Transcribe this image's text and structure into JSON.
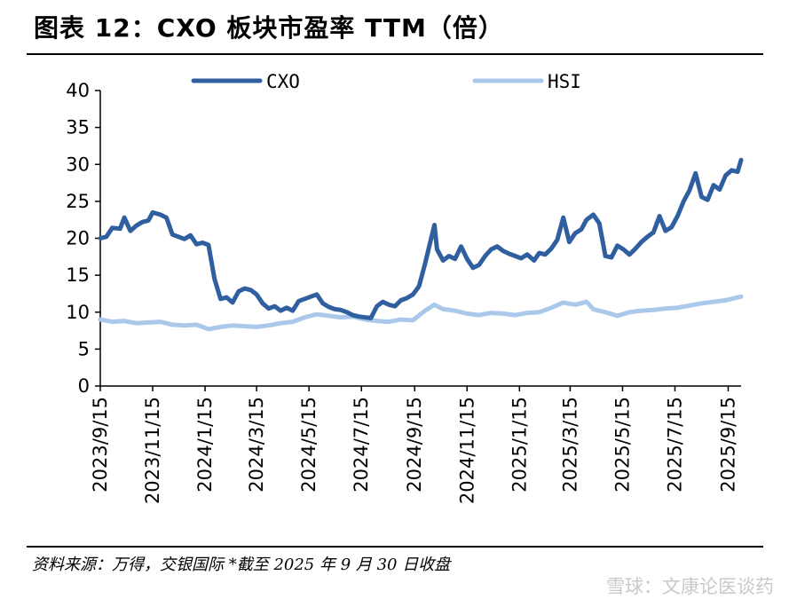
{
  "header": {
    "title": "图表 12：CXO 板块市盈率 TTM（倍）"
  },
  "footer": {
    "source": "资料来源：万得，交银国际 *截至 2025 年 9 月 30 日收盘",
    "watermark": "雪球：文康论医谈药"
  },
  "chart_data": {
    "type": "line",
    "title": "图表 12：CXO 板块市盈率 TTM（倍）",
    "xlabel": "",
    "ylabel": "",
    "ylim": [
      0,
      40
    ],
    "yticks": [
      "0",
      "5",
      "10",
      "15",
      "20",
      "25",
      "30",
      "35",
      "40"
    ],
    "xticks": [
      "2023/9/15",
      "2023/11/15",
      "2024/1/15",
      "2024/3/15",
      "2024/5/15",
      "2024/7/15",
      "2024/9/15",
      "2024/11/15",
      "2025/1/15",
      "2025/3/15",
      "2025/5/15",
      "2025/7/15",
      "2025/9/15"
    ],
    "x_start": "2023/9/15",
    "x_end": "2025/9/30",
    "legend": "top",
    "grid": false,
    "series": [
      {
        "name": "CXO",
        "color": "#2f5f9e",
        "points": [
          [
            "2023/9/15",
            20.0
          ],
          [
            "2023/9/22",
            20.2
          ],
          [
            "2023/9/29",
            21.4
          ],
          [
            "2023/10/8",
            21.3
          ],
          [
            "2023/10/13",
            22.8
          ],
          [
            "2023/10/20",
            21.0
          ],
          [
            "2023/10/27",
            21.7
          ],
          [
            "2023/11/3",
            22.2
          ],
          [
            "2023/11/10",
            22.4
          ],
          [
            "2023/11/15",
            23.5
          ],
          [
            "2023/11/24",
            23.2
          ],
          [
            "2023/12/1",
            22.8
          ],
          [
            "2023/12/8",
            20.5
          ],
          [
            "2023/12/15",
            20.2
          ],
          [
            "2023/12/22",
            19.9
          ],
          [
            "2023/12/29",
            20.4
          ],
          [
            "2024/1/5",
            19.2
          ],
          [
            "2024/1/12",
            19.4
          ],
          [
            "2024/1/19",
            19.1
          ],
          [
            "2024/1/26",
            14.5
          ],
          [
            "2024/2/2",
            11.8
          ],
          [
            "2024/2/9",
            12.0
          ],
          [
            "2024/2/16",
            11.3
          ],
          [
            "2024/2/23",
            12.8
          ],
          [
            "2024/3/1",
            13.2
          ],
          [
            "2024/3/8",
            13.0
          ],
          [
            "2024/3/15",
            12.4
          ],
          [
            "2024/3/22",
            11.2
          ],
          [
            "2024/3/29",
            10.5
          ],
          [
            "2024/4/5",
            10.8
          ],
          [
            "2024/4/12",
            10.2
          ],
          [
            "2024/4/19",
            10.6
          ],
          [
            "2024/4/26",
            10.2
          ],
          [
            "2024/5/3",
            11.5
          ],
          [
            "2024/5/10",
            11.8
          ],
          [
            "2024/5/17",
            12.1
          ],
          [
            "2024/5/24",
            12.4
          ],
          [
            "2024/5/31",
            11.2
          ],
          [
            "2024/6/7",
            10.7
          ],
          [
            "2024/6/14",
            10.4
          ],
          [
            "2024/6/21",
            10.3
          ],
          [
            "2024/6/28",
            10.0
          ],
          [
            "2024/7/5",
            9.6
          ],
          [
            "2024/7/12",
            9.4
          ],
          [
            "2024/7/19",
            9.3
          ],
          [
            "2024/7/26",
            9.2
          ],
          [
            "2024/8/2",
            10.8
          ],
          [
            "2024/8/9",
            11.4
          ],
          [
            "2024/8/16",
            11.0
          ],
          [
            "2024/8/23",
            10.8
          ],
          [
            "2024/8/30",
            11.6
          ],
          [
            "2024/9/6",
            11.9
          ],
          [
            "2024/9/13",
            12.4
          ],
          [
            "2024/9/20",
            13.5
          ],
          [
            "2024/9/27",
            16.5
          ],
          [
            "2024/10/8",
            21.8
          ],
          [
            "2024/10/11",
            18.5
          ],
          [
            "2024/10/18",
            17.0
          ],
          [
            "2024/10/25",
            17.6
          ],
          [
            "2024/11/1",
            17.2
          ],
          [
            "2024/11/8",
            18.9
          ],
          [
            "2024/11/15",
            17.2
          ],
          [
            "2024/11/22",
            16.0
          ],
          [
            "2024/11/29",
            16.4
          ],
          [
            "2024/12/6",
            17.6
          ],
          [
            "2024/12/13",
            18.5
          ],
          [
            "2024/12/20",
            18.9
          ],
          [
            "2024/12/27",
            18.3
          ],
          [
            "2025/1/3",
            17.9
          ],
          [
            "2025/1/10",
            17.6
          ],
          [
            "2025/1/17",
            17.3
          ],
          [
            "2025/1/24",
            17.8
          ],
          [
            "2025/2/1",
            17.0
          ],
          [
            "2025/2/7",
            18.0
          ],
          [
            "2025/2/14",
            17.8
          ],
          [
            "2025/2/21",
            18.6
          ],
          [
            "2025/2/28",
            19.8
          ],
          [
            "2025/3/7",
            22.8
          ],
          [
            "2025/3/14",
            19.5
          ],
          [
            "2025/3/21",
            20.7
          ],
          [
            "2025/3/28",
            21.2
          ],
          [
            "2025/4/3",
            22.5
          ],
          [
            "2025/4/11",
            23.2
          ],
          [
            "2025/4/18",
            22.0
          ],
          [
            "2025/4/25",
            17.6
          ],
          [
            "2025/5/2",
            17.4
          ],
          [
            "2025/5/9",
            19.0
          ],
          [
            "2025/5/16",
            18.5
          ],
          [
            "2025/5/23",
            17.8
          ],
          [
            "2025/5/30",
            18.6
          ],
          [
            "2025/6/6",
            19.5
          ],
          [
            "2025/6/13",
            20.2
          ],
          [
            "2025/6/20",
            20.8
          ],
          [
            "2025/6/27",
            23.0
          ],
          [
            "2025/7/4",
            21.0
          ],
          [
            "2025/7/11",
            21.5
          ],
          [
            "2025/7/18",
            23.0
          ],
          [
            "2025/7/25",
            25.0
          ],
          [
            "2025/8/1",
            26.5
          ],
          [
            "2025/8/8",
            28.8
          ],
          [
            "2025/8/15",
            25.6
          ],
          [
            "2025/8/22",
            25.2
          ],
          [
            "2025/8/29",
            27.2
          ],
          [
            "2025/9/5",
            26.6
          ],
          [
            "2025/9/12",
            28.5
          ],
          [
            "2025/9/19",
            29.2
          ],
          [
            "2025/9/26",
            29.0
          ],
          [
            "2025/9/30",
            30.6
          ]
        ]
      },
      {
        "name": "HSI",
        "color": "#a9c8ea",
        "points": [
          [
            "2023/9/15",
            9.0
          ],
          [
            "2023/9/29",
            8.7
          ],
          [
            "2023/10/13",
            8.8
          ],
          [
            "2023/10/27",
            8.5
          ],
          [
            "2023/11/10",
            8.6
          ],
          [
            "2023/11/24",
            8.7
          ],
          [
            "2023/12/8",
            8.3
          ],
          [
            "2023/12/22",
            8.2
          ],
          [
            "2024/1/5",
            8.3
          ],
          [
            "2024/1/19",
            7.7
          ],
          [
            "2024/2/2",
            8.0
          ],
          [
            "2024/2/16",
            8.2
          ],
          [
            "2024/3/1",
            8.1
          ],
          [
            "2024/3/15",
            8.0
          ],
          [
            "2024/3/29",
            8.2
          ],
          [
            "2024/4/12",
            8.5
          ],
          [
            "2024/4/26",
            8.7
          ],
          [
            "2024/5/10",
            9.3
          ],
          [
            "2024/5/24",
            9.7
          ],
          [
            "2024/6/7",
            9.5
          ],
          [
            "2024/6/21",
            9.3
          ],
          [
            "2024/7/5",
            9.4
          ],
          [
            "2024/7/19",
            9.0
          ],
          [
            "2024/8/2",
            8.8
          ],
          [
            "2024/8/16",
            8.7
          ],
          [
            "2024/8/30",
            9.0
          ],
          [
            "2024/9/13",
            8.9
          ],
          [
            "2024/9/27",
            10.2
          ],
          [
            "2024/10/8",
            11.0
          ],
          [
            "2024/10/18",
            10.4
          ],
          [
            "2024/11/1",
            10.2
          ],
          [
            "2024/11/15",
            9.8
          ],
          [
            "2024/11/29",
            9.6
          ],
          [
            "2024/12/13",
            9.9
          ],
          [
            "2024/12/27",
            9.8
          ],
          [
            "2025/1/10",
            9.6
          ],
          [
            "2025/1/24",
            9.9
          ],
          [
            "2025/2/7",
            10.0
          ],
          [
            "2025/2/21",
            10.6
          ],
          [
            "2025/3/7",
            11.3
          ],
          [
            "2025/3/21",
            11.0
          ],
          [
            "2025/4/3",
            11.4
          ],
          [
            "2025/4/11",
            10.4
          ],
          [
            "2025/4/25",
            10.0
          ],
          [
            "2025/5/9",
            9.5
          ],
          [
            "2025/5/23",
            10.0
          ],
          [
            "2025/6/6",
            10.2
          ],
          [
            "2025/6/20",
            10.3
          ],
          [
            "2025/7/4",
            10.5
          ],
          [
            "2025/7/18",
            10.6
          ],
          [
            "2025/8/1",
            10.9
          ],
          [
            "2025/8/15",
            11.2
          ],
          [
            "2025/8/29",
            11.4
          ],
          [
            "2025/9/12",
            11.6
          ],
          [
            "2025/9/26",
            12.0
          ],
          [
            "2025/9/30",
            12.1
          ]
        ]
      }
    ]
  }
}
